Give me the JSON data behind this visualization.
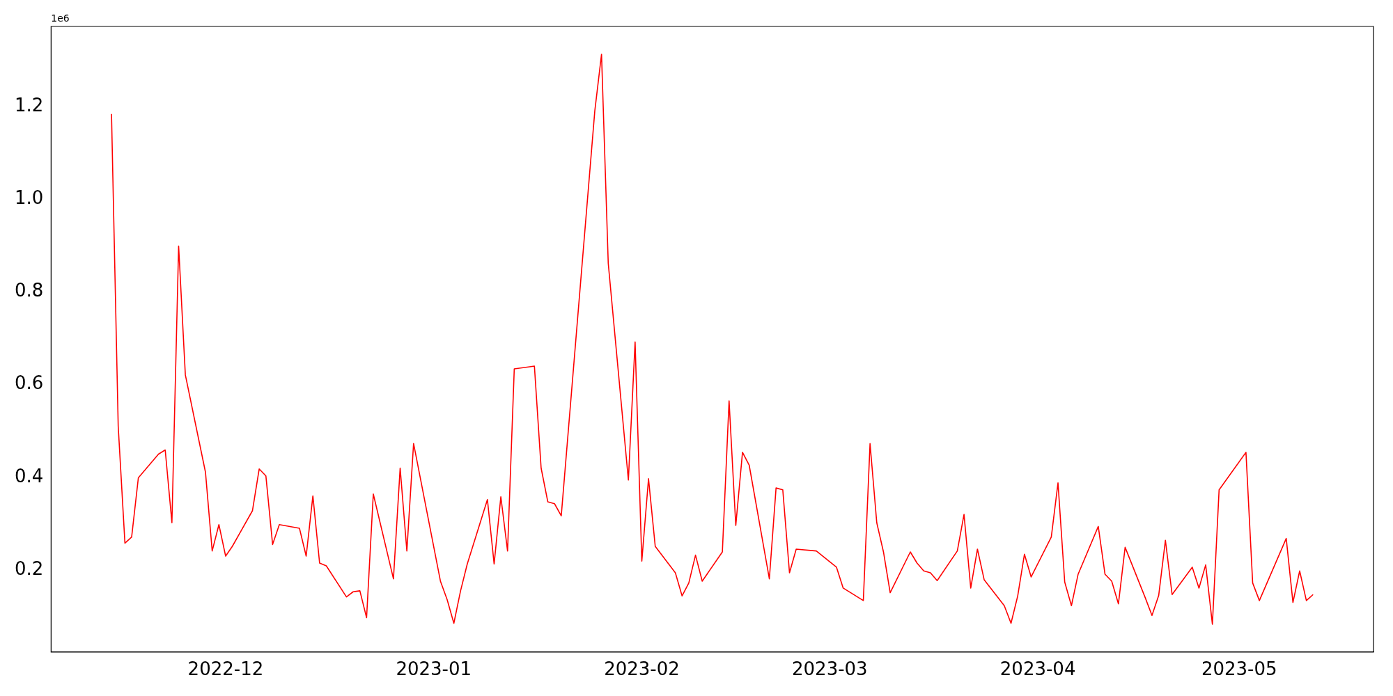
{
  "chart_data": {
    "type": "line",
    "annotations": [
      "1e6"
    ],
    "x": [
      "2022-11-14",
      "2022-11-15",
      "2022-11-16",
      "2022-11-17",
      "2022-11-18",
      "2022-11-21",
      "2022-11-22",
      "2022-11-23",
      "2022-11-24",
      "2022-11-25",
      "2022-11-28",
      "2022-11-29",
      "2022-11-30",
      "2022-12-01",
      "2022-12-02",
      "2022-12-05",
      "2022-12-06",
      "2022-12-07",
      "2022-12-08",
      "2022-12-09",
      "2022-12-12",
      "2022-12-13",
      "2022-12-14",
      "2022-12-15",
      "2022-12-16",
      "2022-12-19",
      "2022-12-20",
      "2022-12-21",
      "2022-12-22",
      "2022-12-23",
      "2022-12-26",
      "2022-12-27",
      "2022-12-28",
      "2022-12-29",
      "2023-01-02",
      "2023-01-03",
      "2023-01-04",
      "2023-01-05",
      "2023-01-06",
      "2023-01-09",
      "2023-01-10",
      "2023-01-11",
      "2023-01-12",
      "2023-01-13",
      "2023-01-16",
      "2023-01-17",
      "2023-01-18",
      "2023-01-19",
      "2023-01-20",
      "2023-01-25",
      "2023-01-26",
      "2023-01-27",
      "2023-01-30",
      "2023-01-31",
      "2023-02-01",
      "2023-02-02",
      "2023-02-03",
      "2023-02-06",
      "2023-02-07",
      "2023-02-08",
      "2023-02-09",
      "2023-02-10",
      "2023-02-13",
      "2023-02-14",
      "2023-02-15",
      "2023-02-16",
      "2023-02-17",
      "2023-02-20",
      "2023-02-21",
      "2023-02-22",
      "2023-02-23",
      "2023-02-24",
      "2023-02-27",
      "2023-03-02",
      "2023-03-03",
      "2023-03-06",
      "2023-03-07",
      "2023-03-08",
      "2023-03-09",
      "2023-03-10",
      "2023-03-13",
      "2023-03-14",
      "2023-03-15",
      "2023-03-16",
      "2023-03-17",
      "2023-03-20",
      "2023-03-21",
      "2023-03-22",
      "2023-03-23",
      "2023-03-24",
      "2023-03-27",
      "2023-03-28",
      "2023-03-29",
      "2023-03-30",
      "2023-03-31",
      "2023-04-03",
      "2023-04-04",
      "2023-04-05",
      "2023-04-06",
      "2023-04-07",
      "2023-04-10",
      "2023-04-11",
      "2023-04-12",
      "2023-04-13",
      "2023-04-14",
      "2023-04-17",
      "2023-04-18",
      "2023-04-19",
      "2023-04-20",
      "2023-04-21",
      "2023-04-24",
      "2023-04-25",
      "2023-04-26",
      "2023-04-27",
      "2023-04-28",
      "2023-05-02",
      "2023-05-03",
      "2023-05-04",
      "2023-05-08",
      "2023-05-09",
      "2023-05-10",
      "2023-05-11",
      "2023-05-12"
    ],
    "series": [
      {
        "color": "#ff0000",
        "values": [
          1.184,
          0.51,
          0.258,
          0.271,
          0.399,
          0.45,
          0.459,
          0.302,
          0.899,
          0.621,
          0.411,
          0.241,
          0.298,
          0.23,
          0.251,
          0.328,
          0.418,
          0.403,
          0.255,
          0.298,
          0.29,
          0.23,
          0.36,
          0.215,
          0.209,
          0.142,
          0.153,
          0.155,
          0.097,
          0.364,
          0.181,
          0.42,
          0.241,
          0.473,
          0.176,
          0.136,
          0.085,
          0.155,
          0.213,
          0.352,
          0.213,
          0.358,
          0.241,
          0.634,
          0.64,
          0.42,
          0.347,
          0.343,
          0.317,
          1.191,
          1.313,
          0.862,
          0.394,
          0.692,
          0.219,
          0.397,
          0.251,
          0.194,
          0.144,
          0.172,
          0.232,
          0.176,
          0.239,
          0.565,
          0.296,
          0.454,
          0.426,
          0.181,
          0.377,
          0.373,
          0.194,
          0.245,
          0.241,
          0.206,
          0.161,
          0.134,
          0.473,
          0.302,
          0.239,
          0.151,
          0.239,
          0.215,
          0.198,
          0.194,
          0.177,
          0.241,
          0.32,
          0.161,
          0.245,
          0.179,
          0.123,
          0.085,
          0.144,
          0.234,
          0.185,
          0.271,
          0.388,
          0.174,
          0.123,
          0.191,
          0.294,
          0.191,
          0.176,
          0.127,
          0.249,
          0.14,
          0.102,
          0.145,
          0.264,
          0.147,
          0.206,
          0.161,
          0.211,
          0.083,
          0.373,
          0.454,
          0.172,
          0.134,
          0.268,
          0.13,
          0.198,
          0.134,
          0.147
        ]
      }
    ],
    "xlim": [
      "2022-11-05",
      "2023-05-21"
    ],
    "xticks": [
      {
        "value": "2022-12-01",
        "label": "2022-12"
      },
      {
        "value": "2023-01-01",
        "label": "2023-01"
      },
      {
        "value": "2023-02-01",
        "label": "2023-02"
      },
      {
        "value": "2023-03-01",
        "label": "2023-03"
      },
      {
        "value": "2023-04-01",
        "label": "2023-04"
      },
      {
        "value": "2023-05-01",
        "label": "2023-05"
      }
    ],
    "ylim": [
      0.023,
      1.373
    ],
    "yticks": [
      0.2,
      0.4,
      0.6,
      0.8,
      {
        "value": 1.0,
        "label": "1.0"
      },
      1.2
    ],
    "grid": false,
    "legend": false,
    "marker": "none",
    "line_style": "solid"
  }
}
